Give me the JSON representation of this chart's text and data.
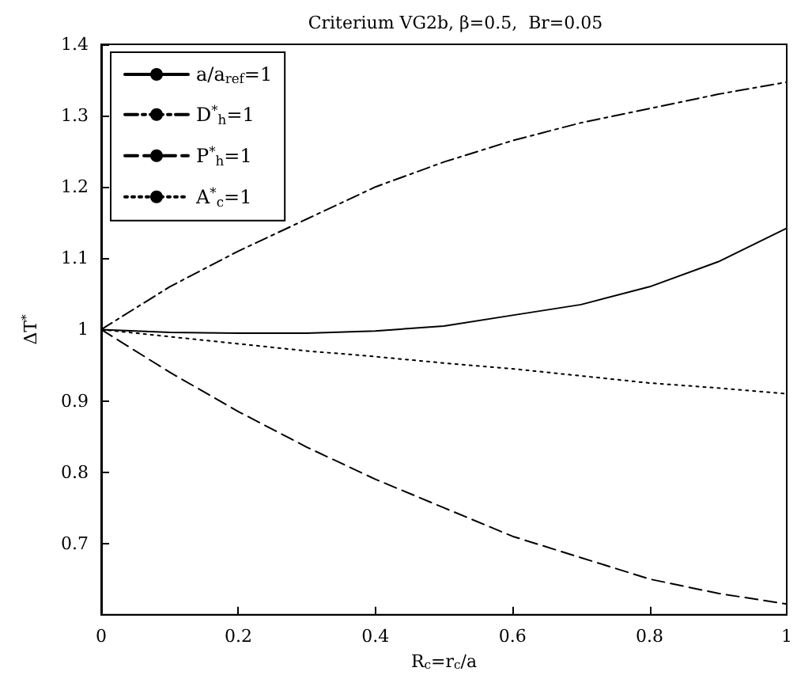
{
  "chart_data": {
    "type": "line",
    "title": "Criterium VG2b, β=0.5,  Br=0.05",
    "xlabel": "R$_{c}$=r$_{c}$/a",
    "ylabel": "ΔT$^{*}$",
    "x": [
      0,
      0.1,
      0.2,
      0.3,
      0.4,
      0.5,
      0.6,
      0.7,
      0.8,
      0.9,
      1
    ],
    "series": [
      {
        "name": "a/a$_{ref}$=1",
        "color": "#000000",
        "line_style": "solid",
        "values": [
          1,
          0.996,
          0.995,
          0.995,
          0.998,
          1.005,
          1.02,
          1.035,
          1.06,
          1.095,
          1.142
        ]
      },
      {
        "name": "D$^{*}$$_{h}$=1",
        "color": "#000000",
        "line_style": "dashdot",
        "values": [
          1,
          1.06,
          1.11,
          1.155,
          1.2,
          1.235,
          1.265,
          1.29,
          1.31,
          1.33,
          1.347
        ]
      },
      {
        "name": "P$^{*}$$_{h}$=1",
        "color": "#000000",
        "line_style": "dashed",
        "values": [
          1,
          0.94,
          0.885,
          0.835,
          0.79,
          0.75,
          0.71,
          0.68,
          0.65,
          0.63,
          0.615
        ]
      },
      {
        "name": "A$^{*}$$_{c}$=1",
        "color": "#000000",
        "line_style": "dotted",
        "values": [
          1,
          0.99,
          0.98,
          0.97,
          0.962,
          0.953,
          0.945,
          0.935,
          0.925,
          0.918,
          0.91
        ]
      }
    ],
    "xlim": [
      0,
      1
    ],
    "xticks": [
      0,
      0.2,
      0.4,
      0.6,
      0.8,
      1
    ],
    "ylim": [
      0.6,
      1.4
    ],
    "yticks": [
      0.7,
      0.8,
      0.9,
      1,
      1.1,
      1.2,
      1.3,
      1.4
    ],
    "grid": false,
    "legend": "top left",
    "marker": "none"
  }
}
